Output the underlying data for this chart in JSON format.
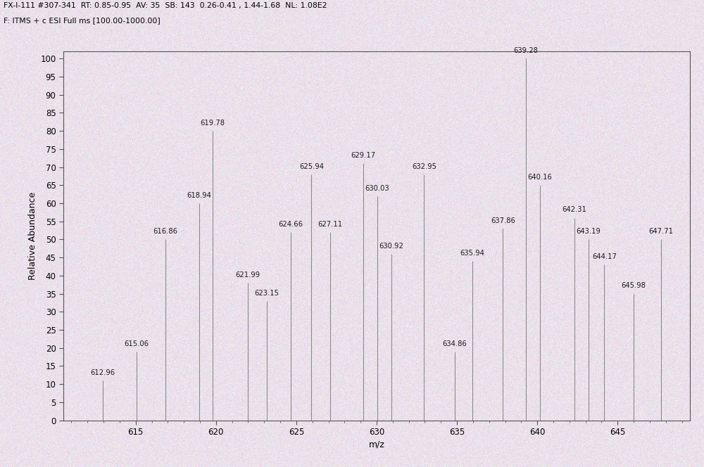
{
  "header_line1": "FX-I-111 #307-341  RT: 0.85-0.95  AV: 35  SB: 143  0.26-0.41 , 1.44-1.68  NL: 1.08E2",
  "header_line2": "F: ITMS + c ESI Full ms [100.00-1000.00]",
  "xlabel": "m/z",
  "ylabel": "Relative Abundance",
  "xlim": [
    610.5,
    649.5
  ],
  "ylim": [
    0,
    102
  ],
  "yticks": [
    0,
    5,
    10,
    15,
    20,
    25,
    30,
    35,
    40,
    45,
    50,
    55,
    60,
    65,
    70,
    75,
    80,
    85,
    90,
    95,
    100
  ],
  "xticks": [
    615,
    620,
    625,
    630,
    635,
    640,
    645
  ],
  "bg_color": "#f0eaf0",
  "plot_bg": "#ece8ec",
  "peaks": [
    {
      "mz": 612.96,
      "intensity": 11,
      "label_side": "right"
    },
    {
      "mz": 615.06,
      "intensity": 19,
      "label_side": "right"
    },
    {
      "mz": 616.86,
      "intensity": 50,
      "label_side": "left"
    },
    {
      "mz": 618.94,
      "intensity": 60,
      "label_side": "left"
    },
    {
      "mz": 619.78,
      "intensity": 80,
      "label_side": "right"
    },
    {
      "mz": 621.99,
      "intensity": 38,
      "label_side": "left"
    },
    {
      "mz": 623.15,
      "intensity": 33,
      "label_side": "right"
    },
    {
      "mz": 624.66,
      "intensity": 52,
      "label_side": "left"
    },
    {
      "mz": 625.94,
      "intensity": 68,
      "label_side": "right"
    },
    {
      "mz": 627.11,
      "intensity": 52,
      "label_side": "right"
    },
    {
      "mz": 629.17,
      "intensity": 71,
      "label_side": "left"
    },
    {
      "mz": 630.03,
      "intensity": 62,
      "label_side": "right"
    },
    {
      "mz": 630.92,
      "intensity": 46,
      "label_side": "right"
    },
    {
      "mz": 632.95,
      "intensity": 68,
      "label_side": "right"
    },
    {
      "mz": 634.86,
      "intensity": 19,
      "label_side": "left"
    },
    {
      "mz": 635.94,
      "intensity": 44,
      "label_side": "right"
    },
    {
      "mz": 637.86,
      "intensity": 53,
      "label_side": "right"
    },
    {
      "mz": 639.28,
      "intensity": 100,
      "label_side": "right"
    },
    {
      "mz": 640.16,
      "intensity": 65,
      "label_side": "right"
    },
    {
      "mz": 642.31,
      "intensity": 56,
      "label_side": "right"
    },
    {
      "mz": 643.19,
      "intensity": 50,
      "label_side": "right"
    },
    {
      "mz": 644.17,
      "intensity": 43,
      "label_side": "right"
    },
    {
      "mz": 645.98,
      "intensity": 35,
      "label_side": "right"
    },
    {
      "mz": 647.71,
      "intensity": 50,
      "label_side": "right"
    }
  ],
  "line_color": "#888888",
  "label_fontsize": 7.2,
  "axis_fontsize": 9,
  "header_fontsize": 7.8,
  "tick_label_fontsize": 8.5
}
